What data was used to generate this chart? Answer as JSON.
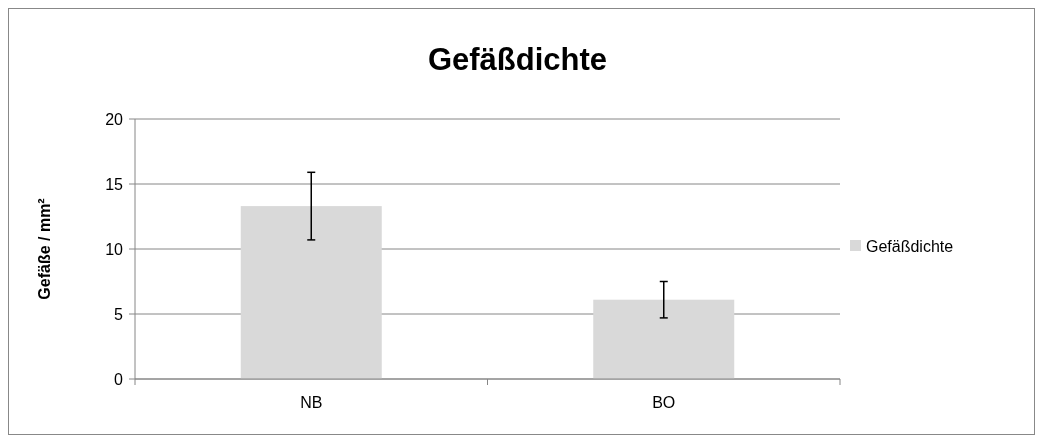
{
  "chart_data": {
    "type": "bar",
    "title": "Gefäßdichte",
    "ylabel": "Gefäße / mm²",
    "categories": [
      "NB",
      "BO"
    ],
    "series": [
      {
        "name": "Gefäßdichte",
        "color": "#d9d9d9",
        "values": [
          13.3,
          6.1
        ],
        "errors": [
          2.6,
          1.4
        ]
      }
    ],
    "ylim": [
      0,
      20
    ],
    "yticks": [
      0,
      5,
      10,
      15,
      20
    ],
    "grid": "y",
    "legend": "right"
  }
}
